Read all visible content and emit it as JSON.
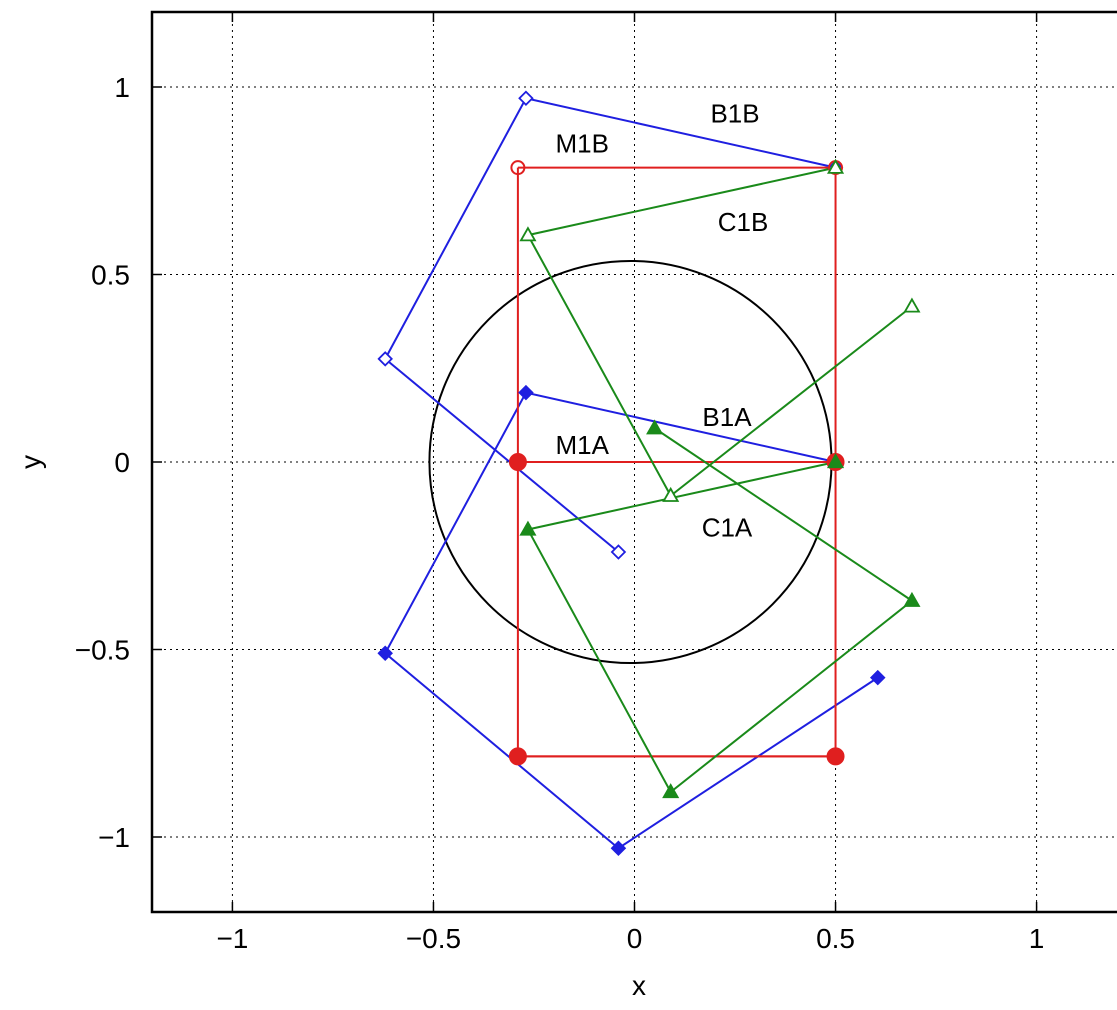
{
  "chart_data": {
    "type": "line",
    "title": "",
    "xlabel": "x",
    "ylabel": "y",
    "xlim": [
      -1.2,
      1.2
    ],
    "ylim": [
      -1.2,
      1.2
    ],
    "grid": true,
    "legend": "none",
    "x_ticks": [
      -1,
      -0.5,
      0,
      0.5,
      1
    ],
    "y_ticks": [
      -1,
      -0.5,
      0,
      0.5,
      1
    ],
    "x_tick_labels": [
      "−1",
      "−0.5",
      "0",
      "0.5",
      "1"
    ],
    "y_tick_labels": [
      "−1",
      "−0.5",
      "0",
      "0.5",
      "1"
    ],
    "circle": {
      "center": [
        -0.01,
        0
      ],
      "radius": 0.5,
      "color": "#000000"
    },
    "series": [
      {
        "color": "#1f1fe0",
        "marker": "diamond-open",
        "points": [
          [
            -0.62,
            0.275
          ],
          [
            -0.27,
            0.97
          ],
          [
            0.5,
            0.785
          ]
        ]
      },
      {
        "color": "#1f1fe0",
        "marker": "none",
        "points": [
          [
            -0.62,
            0.275
          ],
          [
            -0.04,
            -0.24
          ]
        ]
      },
      {
        "color": "#1f1fe0",
        "marker": "diamond-open-end",
        "points": [
          [
            -0.04,
            -0.24
          ]
        ]
      },
      {
        "color": "#1f1fe0",
        "marker": "diamond-filled",
        "points": [
          [
            0.5,
            0
          ],
          [
            -0.27,
            0.185
          ],
          [
            -0.62,
            -0.51
          ],
          [
            -0.04,
            -1.03
          ],
          [
            0.605,
            -0.575
          ]
        ]
      },
      {
        "color": "#e01f1f",
        "marker": "circle-open",
        "points": [
          [
            -0.29,
            0.785
          ],
          [
            0.5,
            0.785
          ]
        ]
      },
      {
        "color": "#e01f1f",
        "marker": "circle-filled",
        "points": [
          [
            -0.29,
            0
          ],
          [
            0.5,
            0
          ]
        ]
      },
      {
        "color": "#e01f1f",
        "marker": "none",
        "points": [
          [
            -0.29,
            0.785
          ],
          [
            -0.29,
            -0.785
          ],
          [
            0.5,
            -0.785
          ],
          [
            0.5,
            0.785
          ]
        ]
      },
      {
        "color": "#e01f1f",
        "marker": "circle-filled",
        "points": [
          [
            -0.29,
            -0.785
          ],
          [
            0.5,
            -0.785
          ]
        ]
      },
      {
        "color": "#1a8a1a",
        "marker": "triangle-open",
        "points": [
          [
            0.5,
            0.785
          ],
          [
            -0.265,
            0.605
          ],
          [
            0.09,
            -0.09
          ],
          [
            0.69,
            0.415
          ]
        ]
      },
      {
        "color": "#1a8a1a",
        "marker": "triangle-filled",
        "points": [
          [
            0.5,
            0
          ],
          [
            -0.265,
            -0.18
          ],
          [
            0.09,
            -0.88
          ],
          [
            0.69,
            -0.37
          ],
          [
            0.05,
            0.09
          ]
        ]
      }
    ],
    "annotations": [
      {
        "text": "B1B",
        "x": 0.25,
        "y": 0.93
      },
      {
        "text": "M1B",
        "x": -0.13,
        "y": 0.85
      },
      {
        "text": "C1B",
        "x": 0.27,
        "y": 0.64
      },
      {
        "text": "B1A",
        "x": 0.23,
        "y": 0.12
      },
      {
        "text": "M1A",
        "x": -0.13,
        "y": 0.045
      },
      {
        "text": "C1A",
        "x": 0.23,
        "y": -0.175
      }
    ]
  }
}
